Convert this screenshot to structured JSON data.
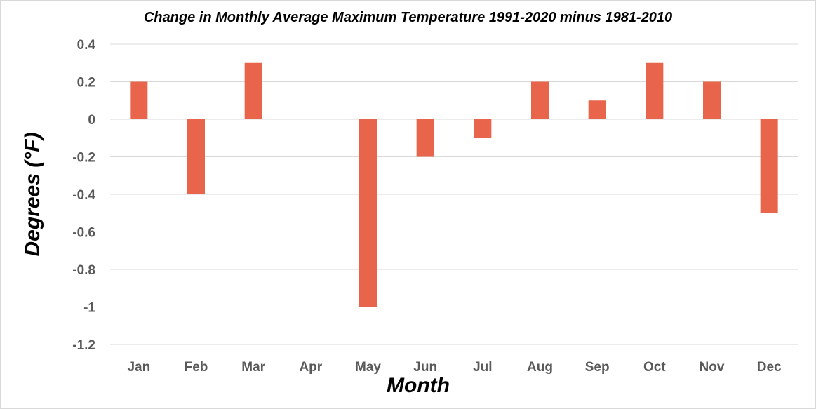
{
  "chart_data": {
    "type": "bar",
    "title": "Change in Monthly Average Maximum Temperature 1991-2020 minus 1981-2010",
    "xlabel": "Month",
    "ylabel": "Degrees (°F)",
    "categories": [
      "Jan",
      "Feb",
      "Mar",
      "Apr",
      "May",
      "Jun",
      "Jul",
      "Aug",
      "Sep",
      "Oct",
      "Nov",
      "Dec"
    ],
    "values": [
      0.2,
      -0.4,
      0.3,
      0,
      -1.0,
      -0.2,
      -0.1,
      0.2,
      0.1,
      0.3,
      0.2,
      -0.5
    ],
    "ylim": [
      -1.2,
      0.4
    ],
    "yticks": [
      "0.4",
      "0.2",
      "0",
      "-0.2",
      "-0.4",
      "-0.6",
      "-0.8",
      "-1",
      "-1.2"
    ],
    "grid": true,
    "legend": "none",
    "bar_color": "#E8644A",
    "grid_color": "#d9d9d9"
  }
}
